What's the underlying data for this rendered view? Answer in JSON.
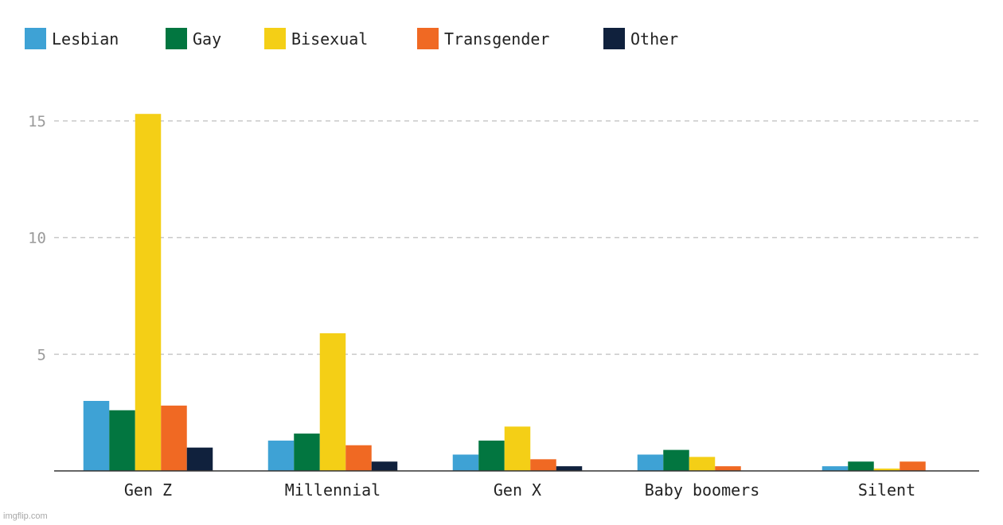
{
  "chart_data": {
    "type": "bar",
    "categories": [
      "Gen Z",
      "Millennial",
      "Gen X",
      "Baby boomers",
      "Silent"
    ],
    "series": [
      {
        "name": "Lesbian",
        "color": "#3ea2d5",
        "values": [
          3.0,
          1.3,
          0.7,
          0.7,
          0.2
        ]
      },
      {
        "name": "Gay",
        "color": "#027640",
        "values": [
          2.6,
          1.6,
          1.3,
          0.9,
          0.4
        ]
      },
      {
        "name": "Bisexual",
        "color": "#f4cf16",
        "values": [
          15.3,
          5.9,
          1.9,
          0.6,
          0.1
        ]
      },
      {
        "name": "Transgender",
        "color": "#f06923",
        "values": [
          2.8,
          1.1,
          0.5,
          0.2,
          0.4
        ]
      },
      {
        "name": "Other",
        "color": "#10213d",
        "values": [
          1.0,
          0.4,
          0.2,
          0.0,
          0.0
        ]
      }
    ],
    "yticks": [
      5,
      10,
      15
    ],
    "ylim": [
      0,
      15.5
    ],
    "grid": true,
    "legend_position": "top-left"
  },
  "watermark": "imgflip.com"
}
